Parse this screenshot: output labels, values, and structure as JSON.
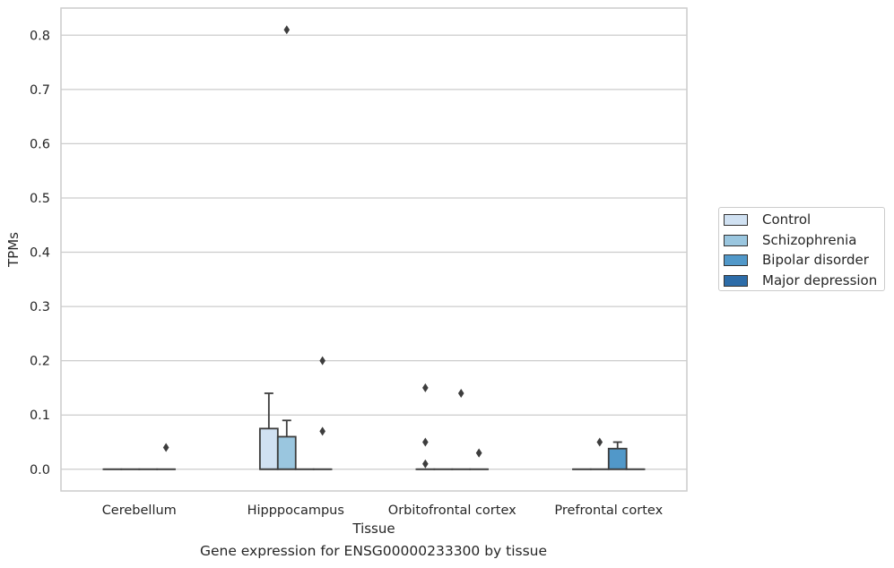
{
  "chart_data": {
    "type": "box",
    "title": "",
    "xlabel": "Tissue",
    "ylabel": "TPMs",
    "ylim": [
      -0.04,
      0.85
    ],
    "yticks": [
      0.0,
      0.1,
      0.2,
      0.3,
      0.4,
      0.5,
      0.6,
      0.7,
      0.8
    ],
    "ytick_labels": [
      "0.0",
      "0.1",
      "0.2",
      "0.3",
      "0.4",
      "0.5",
      "0.6",
      "0.7",
      "0.8"
    ],
    "grid": true,
    "legend_position": "right",
    "categories": [
      "Cerebellum",
      "Hipppocampus",
      "Orbitofrontal cortex",
      "Prefrontal cortex"
    ],
    "series": [
      {
        "name": "Control",
        "color": "#d0e1f2",
        "boxes": [
          {
            "q1": 0.0,
            "median": 0.0,
            "q3": 0.0,
            "whisker_low": 0.0,
            "whisker_high": 0.0,
            "outliers": []
          },
          {
            "q1": 0.0,
            "median": 0.0,
            "q3": 0.075,
            "whisker_low": 0.0,
            "whisker_high": 0.14,
            "outliers": []
          },
          {
            "q1": 0.0,
            "median": 0.0,
            "q3": 0.0,
            "whisker_low": 0.0,
            "whisker_high": 0.0,
            "outliers": [
              0.01,
              0.05,
              0.15
            ]
          },
          {
            "q1": 0.0,
            "median": 0.0,
            "q3": 0.0,
            "whisker_low": 0.0,
            "whisker_high": 0.0,
            "outliers": []
          }
        ]
      },
      {
        "name": "Schizophrenia",
        "color": "#9ac6df",
        "boxes": [
          {
            "q1": 0.0,
            "median": 0.0,
            "q3": 0.0,
            "whisker_low": 0.0,
            "whisker_high": 0.0,
            "outliers": []
          },
          {
            "q1": 0.0,
            "median": 0.0,
            "q3": 0.06,
            "whisker_low": 0.0,
            "whisker_high": 0.09,
            "outliers": [
              0.81
            ]
          },
          {
            "q1": 0.0,
            "median": 0.0,
            "q3": 0.0,
            "whisker_low": 0.0,
            "whisker_high": 0.0,
            "outliers": []
          },
          {
            "q1": 0.0,
            "median": 0.0,
            "q3": 0.0,
            "whisker_low": 0.0,
            "whisker_high": 0.0,
            "outliers": [
              0.05
            ]
          }
        ]
      },
      {
        "name": "Bipolar disorder",
        "color": "#5198c9",
        "boxes": [
          {
            "q1": 0.0,
            "median": 0.0,
            "q3": 0.0,
            "whisker_low": 0.0,
            "whisker_high": 0.0,
            "outliers": []
          },
          {
            "q1": 0.0,
            "median": 0.0,
            "q3": 0.0,
            "whisker_low": 0.0,
            "whisker_high": 0.0,
            "outliers": []
          },
          {
            "q1": 0.0,
            "median": 0.0,
            "q3": 0.0,
            "whisker_low": 0.0,
            "whisker_high": 0.0,
            "outliers": [
              0.14
            ]
          },
          {
            "q1": 0.0,
            "median": 0.0,
            "q3": 0.038,
            "whisker_low": 0.0,
            "whisker_high": 0.05,
            "outliers": []
          }
        ]
      },
      {
        "name": "Major depression",
        "color": "#2d6ca8",
        "boxes": [
          {
            "q1": 0.0,
            "median": 0.0,
            "q3": 0.0,
            "whisker_low": 0.0,
            "whisker_high": 0.0,
            "outliers": [
              0.04
            ]
          },
          {
            "q1": 0.0,
            "median": 0.0,
            "q3": 0.0,
            "whisker_low": 0.0,
            "whisker_high": 0.0,
            "outliers": [
              0.07,
              0.2
            ]
          },
          {
            "q1": 0.0,
            "median": 0.0,
            "q3": 0.0,
            "whisker_low": 0.0,
            "whisker_high": 0.0,
            "outliers": [
              0.03,
              0.03
            ]
          },
          {
            "q1": 0.0,
            "median": 0.0,
            "q3": 0.0,
            "whisker_low": 0.0,
            "whisker_high": 0.0,
            "outliers": []
          }
        ]
      }
    ]
  },
  "caption": "Gene expression for ENSG00000233300 by tissue"
}
